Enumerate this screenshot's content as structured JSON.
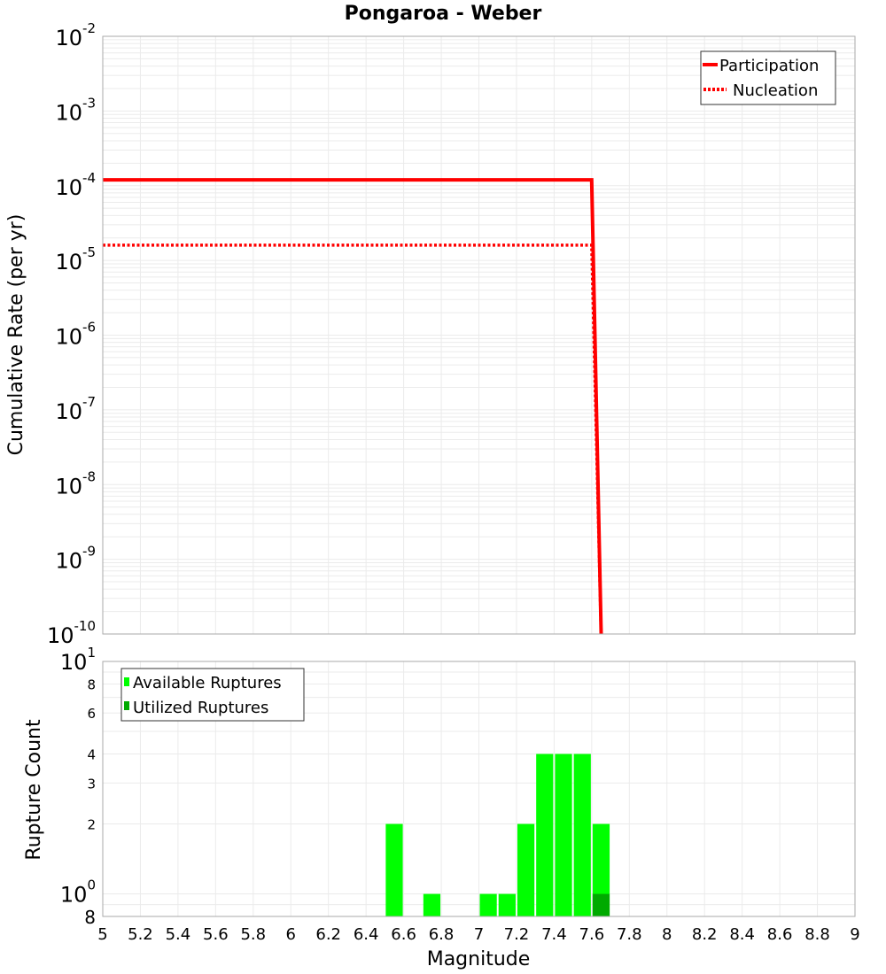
{
  "title": "Pongaroa - Weber",
  "colors": {
    "participation": "#ff0000",
    "nucleation": "#ff0000",
    "available": "#00ff00",
    "utilized": "#00aa00",
    "grid": "#e8e8e8",
    "frame": "#aaaaaa"
  },
  "top_plot": {
    "ylabel": "Cumulative Rate (per yr)",
    "legend": [
      {
        "label": "Participation",
        "style": "solid"
      },
      {
        "label": "Nucleation",
        "style": "dotted"
      }
    ],
    "y_ticks": [
      {
        "base": "10",
        "exp": "-2"
      },
      {
        "base": "10",
        "exp": "-3"
      },
      {
        "base": "10",
        "exp": "-4"
      },
      {
        "base": "10",
        "exp": "-5"
      },
      {
        "base": "10",
        "exp": "-6"
      },
      {
        "base": "10",
        "exp": "-7"
      },
      {
        "base": "10",
        "exp": "-8"
      },
      {
        "base": "10",
        "exp": "-9"
      },
      {
        "base": "10",
        "exp": "-10"
      }
    ]
  },
  "bottom_plot": {
    "ylabel": "Rupture Count",
    "xlabel": "Magnitude",
    "legend": [
      {
        "label": "Available Ruptures"
      },
      {
        "label": "Utilized Ruptures"
      }
    ],
    "y_ticks_major": [
      {
        "base": "10",
        "exp": "1",
        "value": 10
      },
      {
        "base": "10",
        "exp": "0",
        "value": 1
      }
    ],
    "y_ticks_minor": [
      {
        "label": "8",
        "value": 8
      },
      {
        "label": "6",
        "value": 6
      },
      {
        "label": "4",
        "value": 4
      },
      {
        "label": "3",
        "value": 3
      },
      {
        "label": "2",
        "value": 2
      },
      {
        "label": "8",
        "value": 0.8
      }
    ],
    "x_ticks": [
      "5",
      "5.2",
      "5.4",
      "5.6",
      "5.8",
      "6",
      "6.2",
      "6.4",
      "6.6",
      "6.8",
      "7",
      "7.2",
      "7.4",
      "7.6",
      "7.8",
      "8",
      "8.2",
      "8.4",
      "8.6",
      "8.8",
      "9"
    ]
  },
  "chart_data": [
    {
      "type": "line",
      "title": "Pongaroa - Weber",
      "xlabel": "Magnitude",
      "ylabel": "Cumulative Rate (per yr)",
      "yscale": "log",
      "xlim": [
        5,
        9
      ],
      "ylim": [
        1e-10,
        0.01
      ],
      "grid": true,
      "legend_position": "upper right",
      "series": [
        {
          "name": "Participation",
          "style": "solid",
          "x": [
            5.0,
            7.6,
            7.65
          ],
          "y": [
            0.00012,
            0.00012,
            1e-10
          ]
        },
        {
          "name": "Nucleation",
          "style": "dotted",
          "x": [
            5.0,
            7.6,
            7.65
          ],
          "y": [
            1.6e-05,
            1.6e-05,
            1e-10
          ]
        }
      ]
    },
    {
      "type": "bar",
      "xlabel": "Magnitude",
      "ylabel": "Rupture Count",
      "yscale": "log",
      "xlim": [
        5,
        9
      ],
      "ylim": [
        0.8,
        10
      ],
      "grid": true,
      "legend_position": "upper left",
      "bin_width": 0.1,
      "categories": [
        6.55,
        6.75,
        7.05,
        7.15,
        7.25,
        7.35,
        7.45,
        7.55,
        7.65
      ],
      "series": [
        {
          "name": "Available Ruptures",
          "values": [
            2,
            1,
            1,
            1,
            2,
            4,
            4,
            4,
            2
          ]
        },
        {
          "name": "Utilized Ruptures",
          "values": [
            0,
            0,
            0,
            0,
            0,
            0,
            0,
            0,
            1
          ]
        }
      ]
    }
  ]
}
